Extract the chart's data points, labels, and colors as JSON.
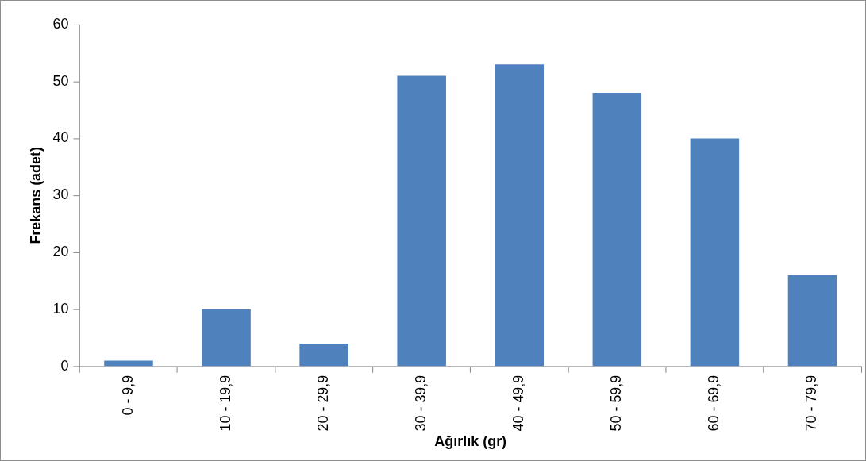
{
  "chart_data": {
    "type": "bar",
    "xlabel": "Ağırlık (gr)",
    "ylabel": "Frekans (adet)",
    "categories": [
      "0 - 9,9",
      "10 - 19,9",
      "20 - 29,9",
      "30 - 39,9",
      "40 - 49,9",
      "50 - 59,9",
      "60 - 69,9",
      "70 - 79,9"
    ],
    "values": [
      1,
      10,
      4,
      51,
      53,
      48,
      40,
      16
    ],
    "color": "#4f81bd",
    "ylim": [
      0,
      60
    ],
    "yticks": [
      0,
      10,
      20,
      30,
      40,
      50,
      60
    ],
    "grid": false,
    "legend": false
  }
}
